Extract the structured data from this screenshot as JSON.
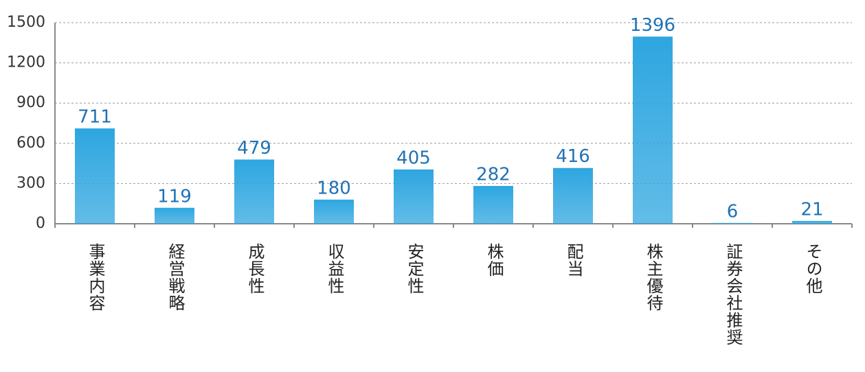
{
  "chart_data": {
    "type": "bar",
    "categories": [
      "事業内容",
      "経営戦略",
      "成長性",
      "収益性",
      "安定性",
      "株価",
      "配当",
      "株主優待",
      "証券会社推奨",
      "その他"
    ],
    "values": [
      711,
      119,
      479,
      180,
      405,
      282,
      416,
      1396,
      6,
      21
    ],
    "color": "#2ea6e0",
    "ylim": [
      0,
      1500
    ],
    "yticks": [
      0,
      300,
      600,
      900,
      1200,
      1500
    ],
    "grid": true
  }
}
